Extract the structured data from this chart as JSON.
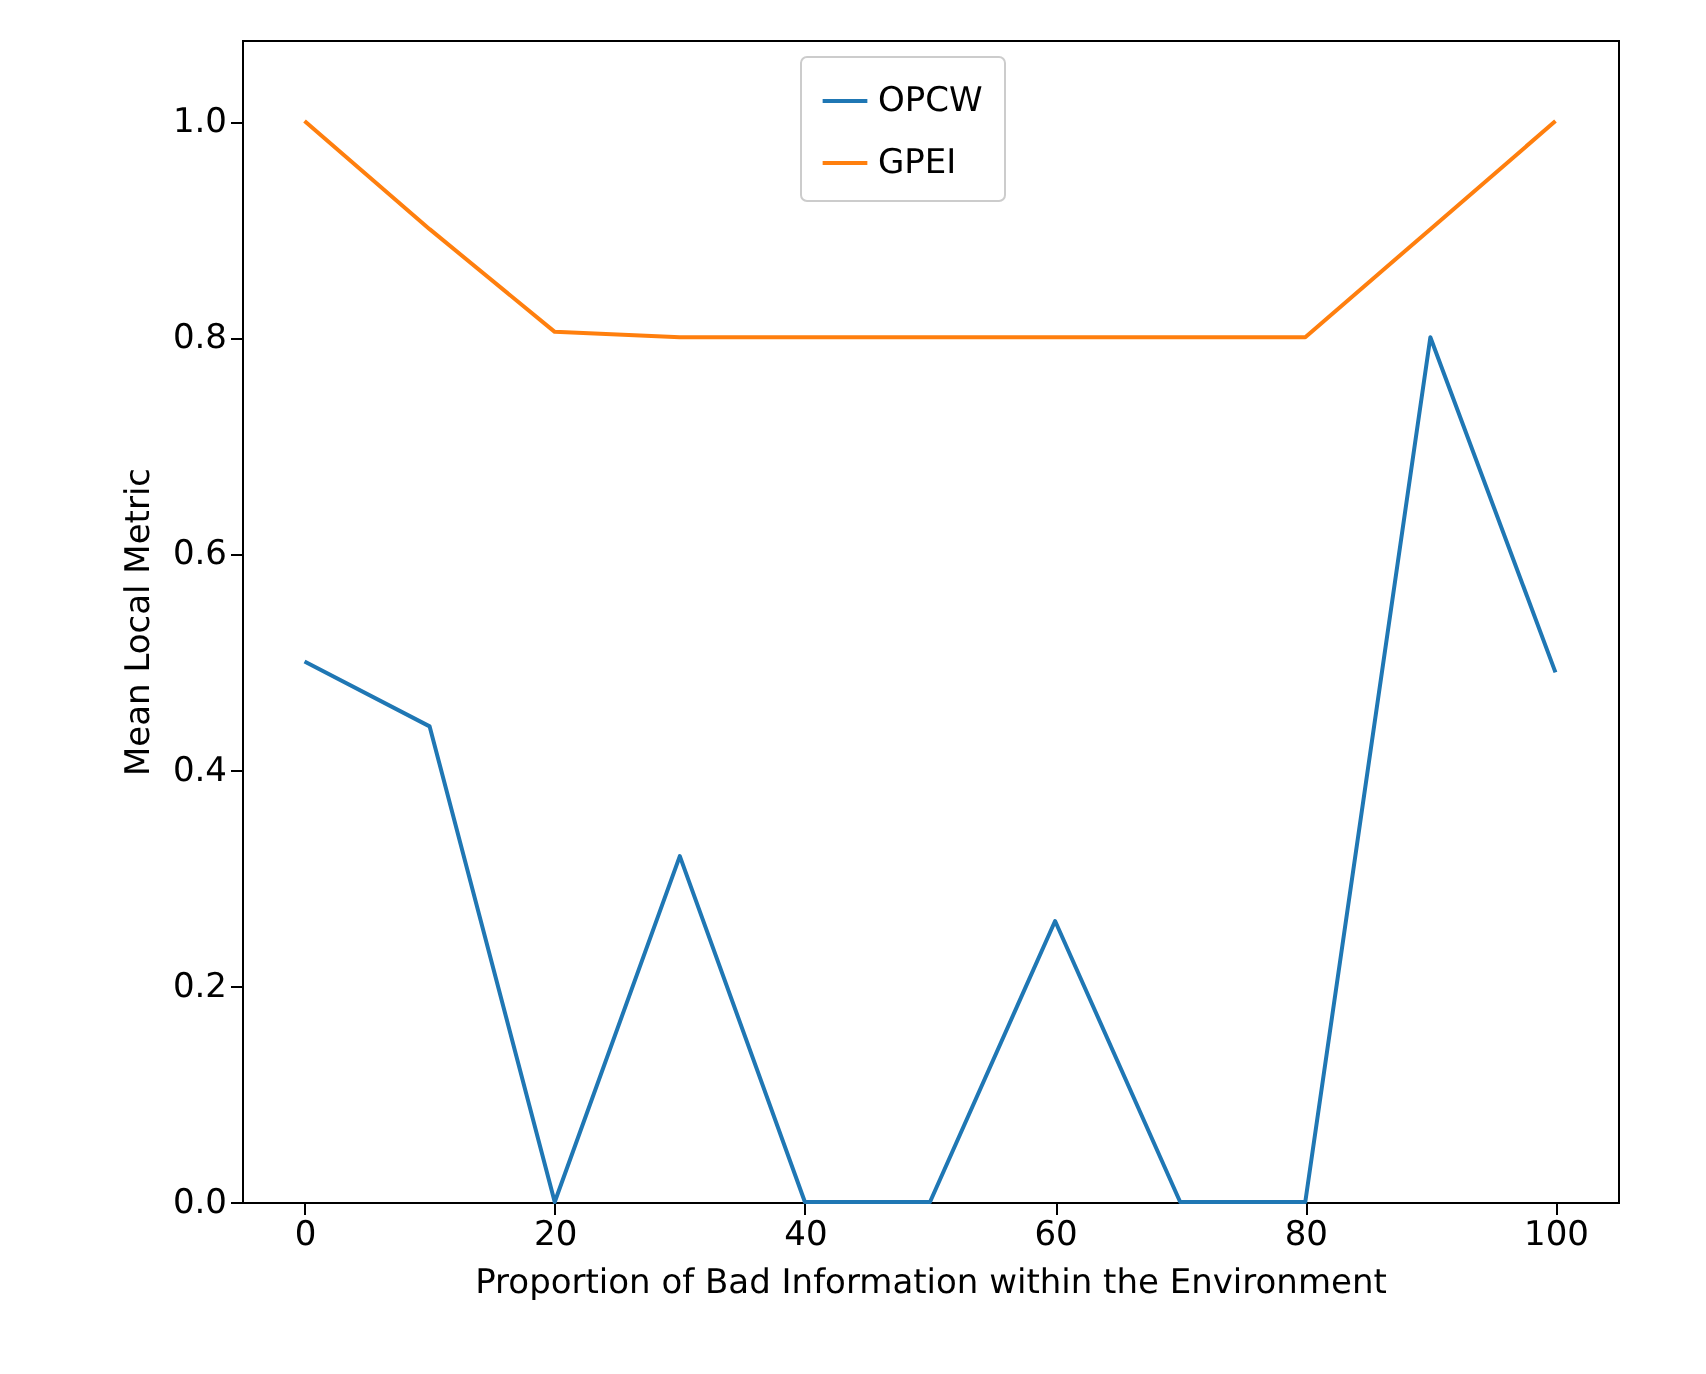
{
  "chart_data": {
    "type": "line",
    "xlabel": "Proportion of Bad Information within the Environment",
    "ylabel": "Mean Local Metric",
    "x": [
      0,
      10,
      20,
      30,
      40,
      50,
      60,
      70,
      80,
      90,
      100
    ],
    "series": [
      {
        "name": "OPCW",
        "color": "#1f77b4",
        "values": [
          0.5,
          0.44,
          0,
          0.32,
          0,
          0,
          0.26,
          0,
          0,
          0.8,
          0.49
        ]
      },
      {
        "name": "GPEI",
        "color": "#ff7f0e",
        "values": [
          1.0,
          0.9,
          0.805,
          0.8,
          0.8,
          0.8,
          0.8,
          0.8,
          0.8,
          0.9,
          1.0
        ]
      }
    ],
    "xlim": [
      -5,
      105
    ],
    "xticks": [
      0,
      20,
      40,
      60,
      80,
      100
    ],
    "ylim": [
      0,
      1.075
    ],
    "yticks": [
      {
        "value": 0,
        "label": "0.0"
      },
      0.2,
      0.4,
      0.6,
      0.8,
      {
        "value": 1,
        "label": "1.0"
      }
    ],
    "grid": false,
    "legend": "top",
    "marker": "none",
    "line_style": "solid"
  }
}
